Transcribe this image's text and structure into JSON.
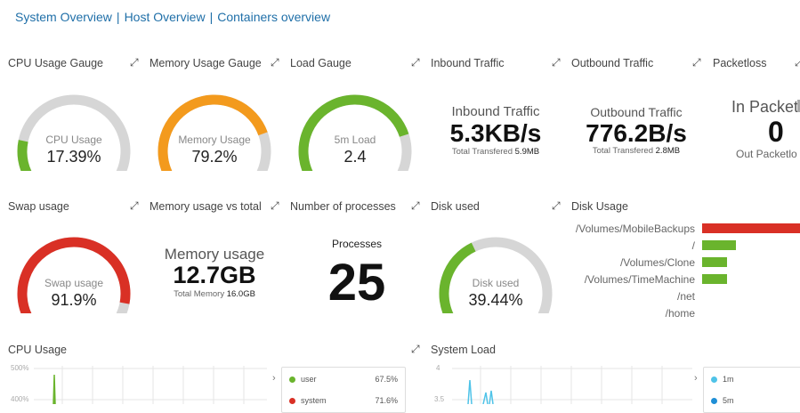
{
  "nav": {
    "links": [
      "System Overview",
      "Host Overview",
      "Containers overview"
    ],
    "sep": "|"
  },
  "icons": {
    "expand": "expand-arrows-icon",
    "chevron": "chevron-right-icon"
  },
  "colors": {
    "green": "#6ab42d",
    "orange": "#f39a1d",
    "red": "#d93025",
    "grey": "#d6d6d6",
    "link": "#1f6fa8"
  },
  "row1": {
    "cpu": {
      "title": "CPU Usage Gauge",
      "label": "CPU Usage",
      "value": "17.39%",
      "fraction": 0.1739,
      "color": "#6ab42d"
    },
    "memory": {
      "title": "Memory Usage Gauge",
      "label": "Memory Usage",
      "value": "79.2%",
      "fraction": 0.792,
      "color": "#f39a1d"
    },
    "load": {
      "title": "Load Gauge",
      "label": "5m Load",
      "value": "2.4",
      "fraction": 0.8,
      "color": "#6ab42d"
    },
    "inbound": {
      "title": "Inbound Traffic",
      "big_title": "Inbound Traffic",
      "value": "5.3KB/s",
      "sub_label": "Total Transfered",
      "sub_value": "5.9MB"
    },
    "outbound": {
      "title": "Outbound Traffic",
      "big_title": "Outbound Traffic",
      "value": "776.2B/s",
      "sub_label": "Total Transfered",
      "sub_value": "2.8MB"
    },
    "packetloss": {
      "title": "Packetloss",
      "big_title": "In Packetlo",
      "value": "0",
      "sub": "Out Packetlo"
    }
  },
  "row2": {
    "swap": {
      "title": "Swap usage",
      "label": "Swap usage",
      "value": "91.9%",
      "fraction": 0.919,
      "color": "#d93025"
    },
    "memtotal": {
      "title": "Memory usage vs total",
      "big_title": "Memory usage",
      "value": "12.7GB",
      "sub_label": "Total Memory",
      "sub_value": "16.0GB"
    },
    "processes": {
      "title": "Number of processes",
      "big_title": "Processes",
      "value": "25"
    },
    "disk": {
      "title": "Disk used",
      "label": "Disk used",
      "value": "39.44%",
      "fraction": 0.3944,
      "color": "#6ab42d"
    },
    "diskusage": {
      "title": "Disk Usage",
      "items": [
        {
          "label": "/Volumes/MobileBackups",
          "value": 1.0,
          "color": "#d93025"
        },
        {
          "label": "/",
          "value": 0.34,
          "color": "#6ab42d"
        },
        {
          "label": "/Volumes/Clone",
          "value": 0.25,
          "color": "#6ab42d"
        },
        {
          "label": "/Volumes/TimeMachine",
          "value": 0.25,
          "color": "#6ab42d"
        },
        {
          "label": "/net",
          "value": 0,
          "color": "#6ab42d"
        },
        {
          "label": "/home",
          "value": 0,
          "color": "#6ab42d"
        }
      ]
    }
  },
  "row3": {
    "cpuusage": {
      "title": "CPU Usage",
      "yticks": [
        "500%",
        "400%"
      ],
      "legend": [
        {
          "name": "user",
          "value": "67.5%",
          "color": "#6ab42d"
        },
        {
          "name": "system",
          "value": "71.6%",
          "color": "#d93025"
        }
      ]
    },
    "sysload": {
      "title": "System Load",
      "yticks": [
        "4",
        "3.5"
      ],
      "legend": [
        {
          "name": "1m",
          "color": "#4fc3e8"
        },
        {
          "name": "5m",
          "color": "#1f8fd6"
        }
      ]
    }
  }
}
